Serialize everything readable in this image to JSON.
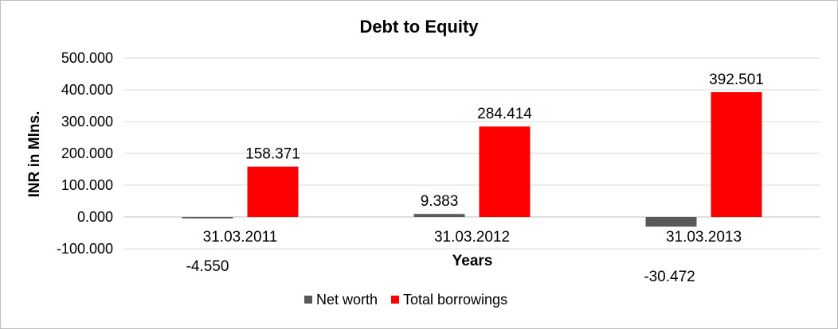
{
  "chart_data": {
    "type": "bar",
    "title": "Debt to Equity",
    "xlabel": "Years",
    "ylabel": "INR in Mlns.",
    "categories": [
      "31.03.2011",
      "31.03.2012",
      "31.03.2013"
    ],
    "series": [
      {
        "name": "Net worth",
        "values": [
          -4.55,
          9.383,
          -30.472
        ],
        "labels": [
          "-4.550",
          "9.383",
          "-30.472"
        ],
        "color": "#595959"
      },
      {
        "name": "Total borrowings",
        "values": [
          158.371,
          284.414,
          392.501
        ],
        "labels": [
          "158.371",
          "284.414",
          "392.501"
        ],
        "color": "#ff0000"
      }
    ],
    "ylim": [
      -100,
      500
    ],
    "yticks": [
      500,
      400,
      300,
      200,
      100,
      0,
      -100
    ],
    "ytick_labels": [
      "500.000",
      "400.000",
      "300.000",
      "200.000",
      "100.000",
      "0.000",
      "-100.000"
    ],
    "grid": true,
    "legend": "bottom"
  }
}
